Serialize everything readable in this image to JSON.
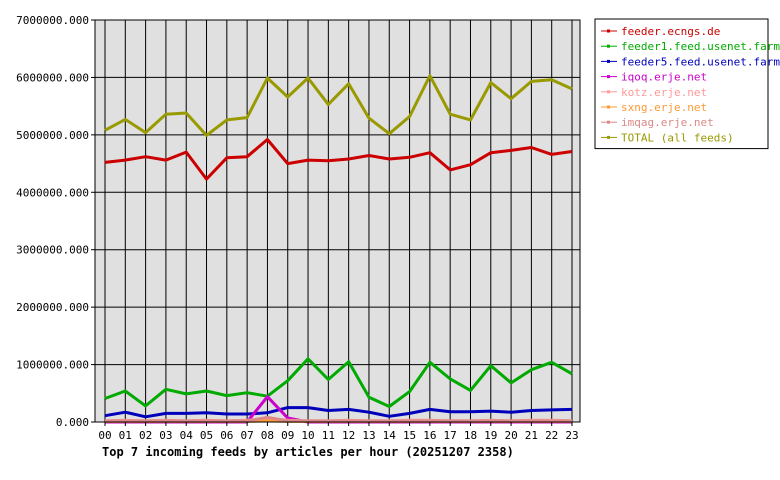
{
  "chart_data": {
    "type": "line",
    "title": "Top 7 incoming feeds by articles per hour (20251207 2358)",
    "xlabel": "",
    "ylabel": "",
    "ylim": [
      0,
      7000000
    ],
    "grid": true,
    "legend_position": "right",
    "y_ticks": [
      "0.000",
      "1000000.000",
      "2000000.000",
      "3000000.000",
      "4000000.000",
      "5000000.000",
      "6000000.000",
      "7000000.000"
    ],
    "categories": [
      "00",
      "01",
      "02",
      "03",
      "04",
      "05",
      "06",
      "07",
      "08",
      "09",
      "10",
      "11",
      "12",
      "13",
      "14",
      "15",
      "16",
      "17",
      "18",
      "19",
      "20",
      "21",
      "22",
      "23"
    ],
    "series": [
      {
        "name": "feeder.ecngs.de",
        "color": "#cc0000",
        "values": [
          4520000,
          4560000,
          4620000,
          4560000,
          4700000,
          4230000,
          4600000,
          4620000,
          4920000,
          4500000,
          4560000,
          4550000,
          4580000,
          4640000,
          4580000,
          4610000,
          4690000,
          4390000,
          4480000,
          4690000,
          4730000,
          4780000,
          4660000,
          4710000
        ]
      },
      {
        "name": "feeder1.feed.usenet.farm",
        "color": "#00aa00",
        "values": [
          410000,
          540000,
          280000,
          570000,
          490000,
          540000,
          460000,
          510000,
          450000,
          720000,
          1100000,
          740000,
          1050000,
          430000,
          270000,
          530000,
          1040000,
          750000,
          550000,
          980000,
          680000,
          910000,
          1040000,
          840000
        ]
      },
      {
        "name": "feeder5.feed.usenet.farm",
        "color": "#0000bb",
        "values": [
          110000,
          170000,
          90000,
          150000,
          150000,
          160000,
          140000,
          140000,
          160000,
          250000,
          250000,
          200000,
          220000,
          170000,
          100000,
          150000,
          220000,
          180000,
          180000,
          190000,
          170000,
          200000,
          210000,
          220000
        ]
      },
      {
        "name": "iqoq.erje.net",
        "color": "#cc00cc",
        "values": [
          0,
          0,
          0,
          0,
          0,
          0,
          0,
          0,
          440000,
          70000,
          0,
          0,
          0,
          0,
          0,
          0,
          0,
          0,
          0,
          0,
          0,
          0,
          0,
          0
        ]
      },
      {
        "name": "kotz.erje.net",
        "color": "#ff9999",
        "values": [
          20000,
          30000,
          20000,
          30000,
          20000,
          30000,
          20000,
          30000,
          60000,
          30000,
          20000,
          20000,
          30000,
          20000,
          20000,
          30000,
          30000,
          20000,
          20000,
          30000,
          20000,
          30000,
          30000,
          20000
        ]
      },
      {
        "name": "sxng.erje.net",
        "color": "#ff9933",
        "values": [
          10000,
          10000,
          10000,
          10000,
          10000,
          10000,
          10000,
          10000,
          20000,
          10000,
          10000,
          10000,
          10000,
          10000,
          10000,
          10000,
          10000,
          10000,
          10000,
          10000,
          10000,
          10000,
          10000,
          10000
        ]
      },
      {
        "name": "imqag.erje.net",
        "color": "#dd8888",
        "values": [
          20000,
          20000,
          20000,
          20000,
          20000,
          20000,
          20000,
          20000,
          80000,
          20000,
          20000,
          20000,
          20000,
          20000,
          20000,
          20000,
          20000,
          20000,
          20000,
          20000,
          20000,
          20000,
          20000,
          20000
        ]
      },
      {
        "name": "TOTAL (all feeds)",
        "color": "#999900",
        "values": [
          5080000,
          5270000,
          5040000,
          5360000,
          5380000,
          4990000,
          5260000,
          5300000,
          5990000,
          5660000,
          5990000,
          5530000,
          5890000,
          5290000,
          5020000,
          5320000,
          6030000,
          5360000,
          5260000,
          5910000,
          5630000,
          5930000,
          5960000,
          5800000
        ]
      }
    ]
  }
}
